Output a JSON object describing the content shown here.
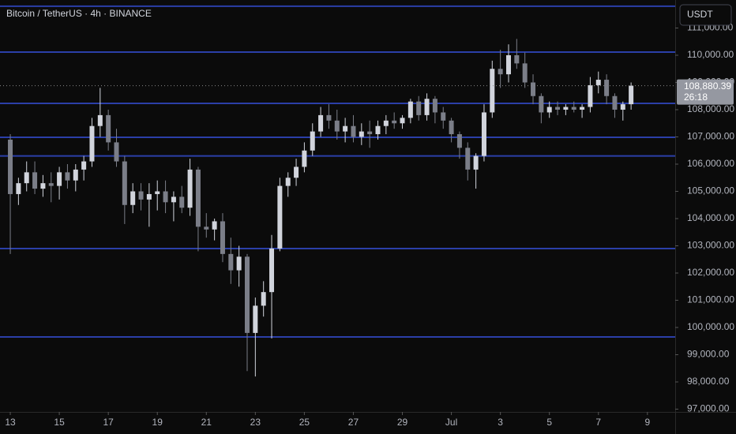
{
  "chart_data": {
    "type": "candlestick",
    "title": "Bitcoin / TetherUS · 4h · BINANCE",
    "currency_button": "USDT",
    "countdown": "26:18",
    "price_label": {
      "value": 108880.39,
      "label": "108,880.39"
    },
    "up_color": "#d1d4dc",
    "down_color": "#7b7e88",
    "level_color": "#2b3fa8",
    "levels": [
      111800,
      110116,
      108232,
      106986,
      106300,
      102899,
      99652
    ],
    "x": [
      0,
      1,
      2,
      3,
      4,
      5,
      6,
      7,
      8,
      9,
      10,
      11,
      12,
      13,
      14,
      15,
      16,
      17,
      18,
      19,
      20,
      21,
      22,
      23,
      24,
      25,
      26,
      27,
      28,
      29,
      30,
      31,
      32,
      33,
      34,
      35,
      36,
      37,
      38,
      39,
      40,
      41,
      42,
      43,
      44,
      45,
      46,
      47,
      48,
      49,
      50,
      51,
      52,
      53,
      54,
      55,
      56,
      57,
      58,
      59,
      60,
      61,
      62,
      63,
      64,
      65,
      66,
      67,
      68,
      69,
      70,
      71,
      72,
      73,
      74,
      75,
      76
    ],
    "open": [
      106900,
      104900,
      105300,
      105700,
      105100,
      105300,
      105200,
      105700,
      105400,
      105800,
      106100,
      107400,
      107800,
      106800,
      106100,
      104500,
      105000,
      104700,
      104900,
      105000,
      104600,
      104800,
      104400,
      105800,
      103700,
      103600,
      103900,
      102700,
      102100,
      102600,
      99800,
      100800,
      101300,
      102900,
      105200,
      105500,
      105900,
      106500,
      107200,
      107800,
      107600,
      107200,
      107400,
      107000,
      107200,
      107100,
      107400,
      107600,
      107500,
      107700,
      108300,
      107800,
      108400,
      107900,
      107600,
      107100,
      106600,
      105800,
      106300,
      107900,
      109500,
      109300,
      110000,
      109700,
      109000,
      108500,
      107900,
      108100,
      108000,
      108100,
      108000,
      108100,
      108900,
      109100,
      108500,
      108000,
      108200
    ],
    "high": [
      107100,
      105500,
      106100,
      106100,
      105600,
      105700,
      105900,
      106000,
      106000,
      106300,
      107700,
      108800,
      108000,
      107300,
      106300,
      105300,
      105300,
      105300,
      105400,
      105400,
      105000,
      105200,
      106200,
      105900,
      104200,
      104000,
      104200,
      103300,
      103000,
      102700,
      101100,
      101700,
      103400,
      105500,
      105700,
      106200,
      106800,
      107500,
      108100,
      108200,
      108000,
      107700,
      107800,
      107500,
      107600,
      107600,
      107800,
      107900,
      107800,
      108400,
      108500,
      108600,
      108500,
      108100,
      107700,
      107200,
      106800,
      106400,
      108200,
      109800,
      110200,
      110400,
      110600,
      110100,
      109300,
      108600,
      108300,
      108300,
      108200,
      108300,
      108200,
      109200,
      109400,
      109300,
      108600,
      108300,
      109000
    ],
    "low": [
      102700,
      104500,
      105000,
      104900,
      104800,
      104600,
      104700,
      105100,
      105000,
      105400,
      105900,
      107000,
      106500,
      105900,
      103800,
      104200,
      104300,
      103700,
      104300,
      104200,
      103900,
      104200,
      104100,
      102800,
      103300,
      103200,
      102400,
      101600,
      101500,
      98400,
      98200,
      100400,
      99600,
      102800,
      104800,
      105200,
      105700,
      106300,
      107000,
      107300,
      106900,
      106800,
      106800,
      106700,
      106600,
      106900,
      107100,
      107300,
      107300,
      107500,
      107600,
      107600,
      107500,
      107300,
      106800,
      106200,
      105400,
      105100,
      106100,
      107700,
      108800,
      109000,
      109500,
      108800,
      108200,
      107500,
      107700,
      107800,
      107800,
      107900,
      107700,
      107900,
      108600,
      108200,
      107700,
      107600,
      108000
    ],
    "close": [
      104900,
      105300,
      105700,
      105100,
      105300,
      105200,
      105700,
      105400,
      105800,
      106100,
      107400,
      107800,
      106800,
      106100,
      104500,
      105000,
      104700,
      104900,
      105000,
      104600,
      104800,
      104400,
      105800,
      103700,
      103600,
      103900,
      102700,
      102100,
      102600,
      99800,
      100800,
      101300,
      102900,
      105200,
      105500,
      105900,
      106500,
      107200,
      107800,
      107600,
      107200,
      107400,
      107000,
      107200,
      107100,
      107400,
      107600,
      107500,
      107700,
      108300,
      107800,
      108400,
      107900,
      107600,
      107100,
      106600,
      105800,
      106300,
      107900,
      109500,
      109300,
      110000,
      109700,
      109000,
      108500,
      107900,
      108100,
      108000,
      108100,
      108000,
      108100,
      108900,
      109100,
      108500,
      108000,
      108200,
      108880.39
    ],
    "xlim": [
      -1.26,
      81.4
    ],
    "xticks": [
      {
        "value": 0,
        "label": "13"
      },
      {
        "value": 6,
        "label": "15"
      },
      {
        "value": 12,
        "label": "17"
      },
      {
        "value": 18,
        "label": "19"
      },
      {
        "value": 24,
        "label": "21"
      },
      {
        "value": 30,
        "label": "23"
      },
      {
        "value": 36,
        "label": "25"
      },
      {
        "value": 42,
        "label": "27"
      },
      {
        "value": 48,
        "label": "29"
      },
      {
        "value": 54,
        "label": "Jul"
      },
      {
        "value": 60,
        "label": "3"
      },
      {
        "value": 66,
        "label": "5"
      },
      {
        "value": 72,
        "label": "7"
      },
      {
        "value": 78,
        "label": "9"
      }
    ],
    "ylim": [
      96899,
      112029
    ],
    "yticks": [
      {
        "value": 97000,
        "label": "97,000.00"
      },
      {
        "value": 98000,
        "label": "98,000.00"
      },
      {
        "value": 99000,
        "label": "99,000.00"
      },
      {
        "value": 100000,
        "label": "100,000.00"
      },
      {
        "value": 101000,
        "label": "101,000.00"
      },
      {
        "value": 102000,
        "label": "102,000.00"
      },
      {
        "value": 103000,
        "label": "103,000.00"
      },
      {
        "value": 104000,
        "label": "104,000.00"
      },
      {
        "value": 105000,
        "label": "105,000.00"
      },
      {
        "value": 106000,
        "label": "106,000.00"
      },
      {
        "value": 107000,
        "label": "107,000.00"
      },
      {
        "value": 108000,
        "label": "108,000.00"
      },
      {
        "value": 109000,
        "label": "109,000.00"
      },
      {
        "value": 110000,
        "label": "110,000.00"
      },
      {
        "value": 111000,
        "label": "111,000.00"
      }
    ]
  }
}
